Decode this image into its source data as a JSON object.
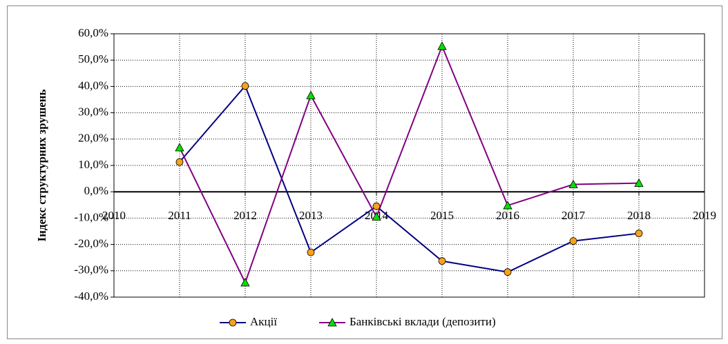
{
  "chart_data": {
    "type": "line",
    "y_label": "Індекс структурних зрушень",
    "x": [
      2011,
      2012,
      2013,
      2014,
      2015,
      2016,
      2017,
      2018
    ],
    "series": [
      {
        "name": "Акції",
        "color": "#000080",
        "marker_color": "#f7a21b",
        "marker": "circle",
        "values": [
          11.3,
          40.2,
          -23.0,
          -5.5,
          -26.3,
          -30.5,
          -18.7,
          -15.8
        ]
      },
      {
        "name": "Банківські вклади (депозити)",
        "color": "#800080",
        "marker_color": "#00e000",
        "marker": "triangle",
        "values": [
          16.8,
          -34.5,
          36.6,
          -9.5,
          55.3,
          -5.2,
          2.8,
          3.3
        ]
      }
    ],
    "xlim": [
      2010,
      2019
    ],
    "xticks": [
      2010,
      2011,
      2012,
      2013,
      2014,
      2015,
      2016,
      2017,
      2018,
      2019
    ],
    "ylim": [
      -40,
      60
    ],
    "yticks": [
      {
        "value": -40,
        "label": "-40,0%"
      },
      {
        "value": -30,
        "label": "-30,0%"
      },
      {
        "value": -20,
        "label": "-20,0%"
      },
      {
        "value": -10,
        "label": "-10,0%"
      },
      {
        "value": 0,
        "label": "0,0%"
      },
      {
        "value": 10,
        "label": "10,0%"
      },
      {
        "value": 20,
        "label": "20,0%"
      },
      {
        "value": 30,
        "label": "30,0%"
      },
      {
        "value": 40,
        "label": "40,0%"
      },
      {
        "value": 50,
        "label": "50,0%"
      },
      {
        "value": 60,
        "label": "60,0%"
      }
    ],
    "grid": true,
    "legend": "bottom"
  }
}
